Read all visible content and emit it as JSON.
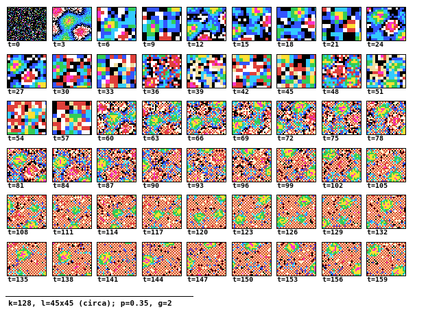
{
  "frames": [
    "t=0",
    "t=3",
    "t=6",
    "t=9",
    "t=12",
    "t=15",
    "t=18",
    "t=21",
    "t=24",
    "t=27",
    "t=30",
    "t=33",
    "t=36",
    "t=39",
    "t=42",
    "t=45",
    "t=48",
    "t=51",
    "t=54",
    "t=57",
    "t=60",
    "t=63",
    "t=66",
    "t=69",
    "t=72",
    "t=75",
    "t=78",
    "t=81",
    "t=84",
    "t=87",
    "t=90",
    "t=93",
    "t=96",
    "t=99",
    "t=102",
    "t=105",
    "t=108",
    "t=111",
    "t=114",
    "t=117",
    "t=120",
    "t=123",
    "t=126",
    "t=129",
    "t=132",
    "t=135",
    "t=138",
    "t=141",
    "t=144",
    "t=147",
    "t=150",
    "t=153",
    "t=156",
    "t=159"
  ],
  "caption": "k=128, l=45x45 (circa); p=0.35, g=2",
  "colors": {
    "red": "#e0403a",
    "dot": "#f2e0a0",
    "magenta": "#ff33cc",
    "yellow": "#ffe033",
    "green": "#33cc55",
    "cyan": "#33ccff",
    "blue": "#3355ff",
    "black": "#000000",
    "white": "#ffffff"
  }
}
